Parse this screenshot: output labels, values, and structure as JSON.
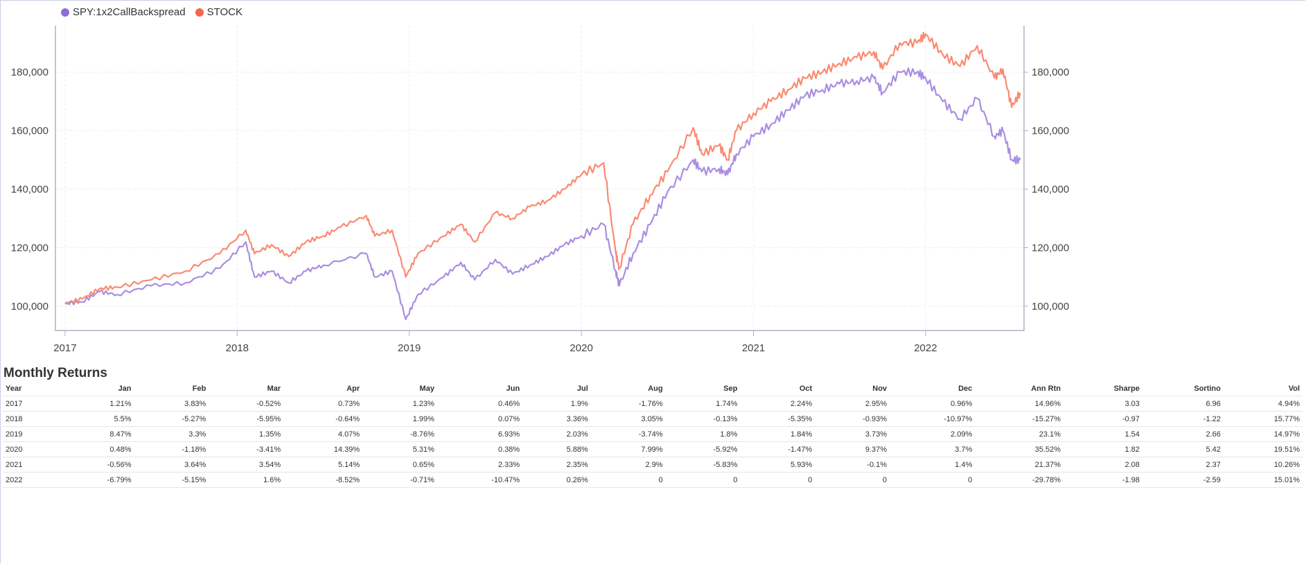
{
  "chart_data": {
    "type": "line",
    "title": "",
    "xlabel": "",
    "ylabel": "",
    "legend_position": "top-left",
    "grid": true,
    "xlim": [
      2016.944,
      2022.572
    ],
    "ylim": [
      91700,
      195900
    ],
    "x_ticks": [
      2017,
      2018,
      2019,
      2020,
      2021,
      2022
    ],
    "x_tick_labels": [
      "2017",
      "2018",
      "2019",
      "2020",
      "2021",
      "2022"
    ],
    "y_ticks": [
      100000,
      120000,
      140000,
      160000,
      180000
    ],
    "y_tick_labels": [
      "100,000",
      "120,000",
      "140,000",
      "160,000",
      "180,000"
    ],
    "series": [
      {
        "name": "SPY:1x2CallBackspread",
        "color": "#a98ee0",
        "x": [
          2017.0,
          2017.1,
          2017.2,
          2017.3,
          2017.5,
          2017.7,
          2017.9,
          2018.05,
          2018.1,
          2018.2,
          2018.3,
          2018.4,
          2018.5,
          2018.75,
          2018.8,
          2018.9,
          2018.98,
          2019.05,
          2019.2,
          2019.3,
          2019.38,
          2019.5,
          2019.6,
          2019.7,
          2019.8,
          2019.9,
          2020.0,
          2020.13,
          2020.2,
          2020.22,
          2020.3,
          2020.4,
          2020.5,
          2020.65,
          2020.7,
          2020.8,
          2020.85,
          2020.9,
          2021.0,
          2021.1,
          2021.2,
          2021.3,
          2021.4,
          2021.5,
          2021.6,
          2021.7,
          2021.75,
          2021.85,
          2021.95,
          2022.0,
          2022.1,
          2022.2,
          2022.3,
          2022.4,
          2022.45,
          2022.5,
          2022.55
        ],
        "values": [
          101000,
          101500,
          105000,
          104000,
          107000,
          108000,
          113000,
          122000,
          110000,
          112000,
          108000,
          112000,
          114000,
          118000,
          110000,
          112000,
          95500,
          104000,
          110000,
          115000,
          109000,
          116000,
          111000,
          114000,
          117000,
          121000,
          124000,
          128000,
          112000,
          107000,
          118000,
          128000,
          139000,
          150000,
          146000,
          147000,
          145000,
          152000,
          158000,
          162000,
          167000,
          172000,
          174000,
          176000,
          177000,
          178000,
          173000,
          180000,
          180000,
          178000,
          170000,
          164000,
          171000,
          158000,
          160000,
          150000,
          150000
        ]
      },
      {
        "name": "STOCK",
        "color": "#fa8a72",
        "x": [
          2017.0,
          2017.1,
          2017.2,
          2017.3,
          2017.5,
          2017.7,
          2017.9,
          2018.05,
          2018.1,
          2018.2,
          2018.3,
          2018.4,
          2018.5,
          2018.6,
          2018.75,
          2018.8,
          2018.9,
          2018.98,
          2019.05,
          2019.2,
          2019.3,
          2019.38,
          2019.5,
          2019.6,
          2019.7,
          2019.8,
          2019.9,
          2020.0,
          2020.13,
          2020.2,
          2020.22,
          2020.3,
          2020.4,
          2020.5,
          2020.65,
          2020.7,
          2020.8,
          2020.85,
          2020.9,
          2021.0,
          2021.1,
          2021.2,
          2021.3,
          2021.4,
          2021.5,
          2021.6,
          2021.7,
          2021.75,
          2021.85,
          2021.95,
          2022.0,
          2022.1,
          2022.2,
          2022.3,
          2022.4,
          2022.45,
          2022.5,
          2022.55
        ],
        "values": [
          101000,
          102500,
          106000,
          106500,
          109000,
          112000,
          118000,
          126000,
          118000,
          121000,
          117000,
          122000,
          124000,
          127000,
          131000,
          124000,
          126000,
          110000,
          118000,
          124000,
          128000,
          122000,
          132000,
          130000,
          134000,
          136000,
          140000,
          145000,
          149000,
          118000,
          113000,
          128000,
          138000,
          146000,
          161000,
          152000,
          155000,
          150000,
          160000,
          166000,
          170000,
          174000,
          178000,
          180000,
          183000,
          185000,
          187000,
          181000,
          190000,
          190000,
          193000,
          186000,
          182000,
          189000,
          178000,
          181000,
          168000,
          173000
        ]
      }
    ]
  },
  "monthly_returns": {
    "title": "Monthly Returns",
    "headers": [
      "Year",
      "Jan",
      "Feb",
      "Mar",
      "Apr",
      "May",
      "Jun",
      "Jul",
      "Aug",
      "Sep",
      "Oct",
      "Nov",
      "Dec",
      "Ann Rtn",
      "Sharpe",
      "Sortino",
      "Vol"
    ],
    "rows": [
      [
        "2017",
        "1.21%",
        "3.83%",
        "-0.52%",
        "0.73%",
        "1.23%",
        "0.46%",
        "1.9%",
        "-1.76%",
        "1.74%",
        "2.24%",
        "2.95%",
        "0.96%",
        "14.96%",
        "3.03",
        "6.96",
        "4.94%"
      ],
      [
        "2018",
        "5.5%",
        "-5.27%",
        "-5.95%",
        "-0.64%",
        "1.99%",
        "0.07%",
        "3.36%",
        "3.05%",
        "-0.13%",
        "-5.35%",
        "-0.93%",
        "-10.97%",
        "-15.27%",
        "-0.97",
        "-1.22",
        "15.77%"
      ],
      [
        "2019",
        "8.47%",
        "3.3%",
        "1.35%",
        "4.07%",
        "-8.76%",
        "6.93%",
        "2.03%",
        "-3.74%",
        "1.8%",
        "1.84%",
        "3.73%",
        "2.09%",
        "23.1%",
        "1.54",
        "2.66",
        "14.97%"
      ],
      [
        "2020",
        "0.48%",
        "-1.18%",
        "-3.41%",
        "14.39%",
        "5.31%",
        "0.38%",
        "5.88%",
        "7.99%",
        "-5.92%",
        "-1.47%",
        "9.37%",
        "3.7%",
        "35.52%",
        "1.82",
        "5.42",
        "19.51%"
      ],
      [
        "2021",
        "-0.56%",
        "3.64%",
        "3.54%",
        "5.14%",
        "0.65%",
        "2.33%",
        "2.35%",
        "2.9%",
        "-5.83%",
        "5.93%",
        "-0.1%",
        "1.4%",
        "21.37%",
        "2.08",
        "2.37",
        "10.26%"
      ],
      [
        "2022",
        "-6.79%",
        "-5.15%",
        "1.6%",
        "-8.52%",
        "-0.71%",
        "-10.47%",
        "0.26%",
        "0",
        "0",
        "0",
        "0",
        "0",
        "-29.78%",
        "-1.98",
        "-2.59",
        "15.01%"
      ]
    ]
  }
}
